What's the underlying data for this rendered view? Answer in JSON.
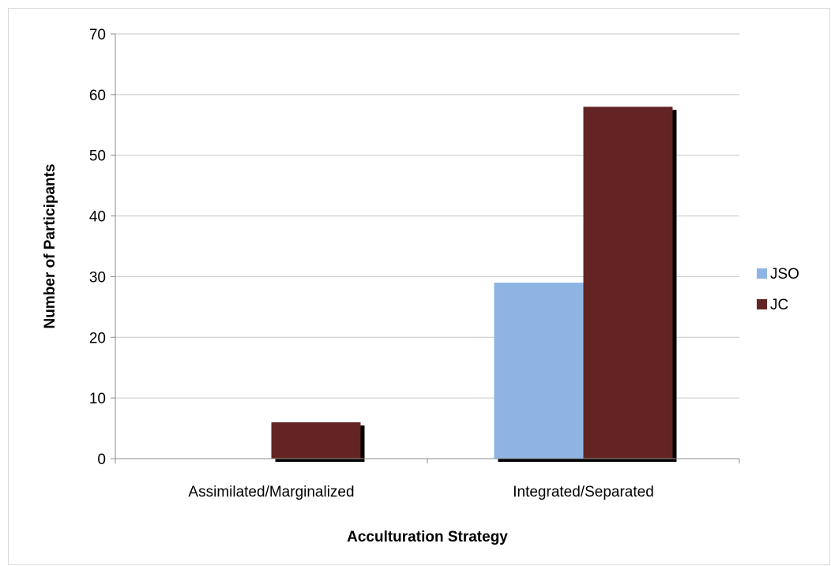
{
  "chart_data": {
    "type": "bar",
    "title": "",
    "xlabel": "Acculturation Strategy",
    "ylabel": "Number of Participants",
    "categories": [
      "Assimilated/Marginalized",
      "Integrated/Separated"
    ],
    "series": [
      {
        "name": "JSO",
        "color": "#8eb4e3",
        "values": [
          0,
          29
        ]
      },
      {
        "name": "JC",
        "color": "#632523",
        "values": [
          6,
          58
        ]
      }
    ],
    "ylim": [
      0,
      70
    ],
    "yticks": [
      0,
      10,
      20,
      30,
      40,
      50,
      60,
      70
    ],
    "grid": true,
    "legend_position": "right"
  }
}
